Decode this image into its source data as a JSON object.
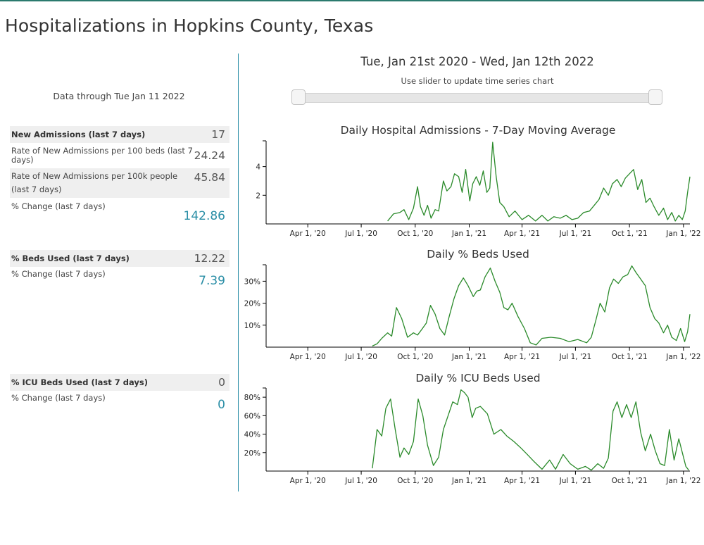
{
  "page": {
    "title": "Hospitalizations in Hopkins County, Texas"
  },
  "summary": {
    "data_through": "Data through Tue Jan 11 2022",
    "stats": [
      {
        "label": "New Admissions (last 7 days)",
        "value": "17",
        "bold": true,
        "shaded": true,
        "teal": false
      },
      {
        "label": "Rate of New Admissions per 100 beds (last 7 days)",
        "value": "24.24",
        "bold": false,
        "shaded": false,
        "teal": false
      },
      {
        "label": "Rate of New Admissions per 100k people (last 7 days)",
        "value": "45.84",
        "bold": false,
        "shaded": true,
        "teal": false
      },
      {
        "label": "% Change (last 7 days)",
        "value": "142.86",
        "bold": false,
        "shaded": false,
        "teal": true
      },
      {
        "label": "% Beds Used (last 7 days)",
        "value": "12.22",
        "bold": true,
        "shaded": true,
        "teal": false
      },
      {
        "label": "% Change (last 7 days)",
        "value": "7.39",
        "bold": false,
        "shaded": false,
        "teal": true
      },
      {
        "label": "% ICU Beds Used (last 7 days)",
        "value": "0",
        "bold": true,
        "shaded": true,
        "teal": false
      },
      {
        "label": "% Change (last 7 days)",
        "value": "0",
        "bold": false,
        "shaded": false,
        "teal": true
      }
    ]
  },
  "time_range": {
    "title": "Tue, Jan 21st 2020 - Wed, Jan 12th 2022",
    "hint": "Use slider to update time series chart"
  },
  "colors": {
    "line": "#2a8a2a",
    "accent": "#2a8ea6",
    "shade": "#efefef"
  },
  "chart_data": [
    {
      "type": "line",
      "title": "Daily Hospital Admissions - 7-Day Moving Average",
      "xlabel": "",
      "ylabel": "",
      "xlim": [
        "2020-01-21",
        "2022-01-12"
      ],
      "ylim": [
        0,
        5.8
      ],
      "y_ticks": [
        2,
        4
      ],
      "y_tick_labels": [
        "2",
        "4"
      ],
      "x_ticks": [
        "2020-04-01",
        "2020-07-01",
        "2020-10-01",
        "2021-01-01",
        "2021-04-01",
        "2021-07-01",
        "2021-10-01",
        "2022-01-01"
      ],
      "x_tick_labels": [
        "Apr 1, '20",
        "Jul 1, '20",
        "Oct 1, '20",
        "Jan 1, '21",
        "Apr 1, '21",
        "Jul 1, '21",
        "Oct 1, '21",
        "Jan 1, '22"
      ],
      "grid": false,
      "series": [
        {
          "x": [
            "2020-08-15",
            "2020-08-25",
            "2020-09-05",
            "2020-09-12",
            "2020-09-20",
            "2020-09-28",
            "2020-10-05",
            "2020-10-10",
            "2020-10-16",
            "2020-10-22",
            "2020-10-28",
            "2020-11-04",
            "2020-11-10",
            "2020-11-18",
            "2020-11-24",
            "2020-12-01",
            "2020-12-07",
            "2020-12-14",
            "2020-12-20",
            "2020-12-26",
            "2021-01-02",
            "2021-01-07",
            "2021-01-13",
            "2021-01-19",
            "2021-01-25",
            "2021-01-31",
            "2021-02-05",
            "2021-02-10",
            "2021-02-16",
            "2021-02-22",
            "2021-03-01",
            "2021-03-10",
            "2021-03-20",
            "2021-04-01",
            "2021-04-12",
            "2021-04-24",
            "2021-05-05",
            "2021-05-15",
            "2021-05-25",
            "2021-06-05",
            "2021-06-15",
            "2021-06-25",
            "2021-07-05",
            "2021-07-15",
            "2021-07-25",
            "2021-08-02",
            "2021-08-10",
            "2021-08-18",
            "2021-08-26",
            "2021-09-02",
            "2021-09-10",
            "2021-09-17",
            "2021-09-24",
            "2021-10-01",
            "2021-10-08",
            "2021-10-15",
            "2021-10-22",
            "2021-10-29",
            "2021-11-05",
            "2021-11-12",
            "2021-11-20",
            "2021-11-28",
            "2021-12-05",
            "2021-12-12",
            "2021-12-18",
            "2021-12-24",
            "2021-12-30",
            "2022-01-04",
            "2022-01-08",
            "2022-01-12"
          ],
          "y": [
            0.2,
            0.7,
            0.8,
            1.0,
            0.3,
            1.1,
            2.6,
            1.2,
            0.6,
            1.3,
            0.4,
            1.0,
            0.9,
            3.0,
            2.3,
            2.6,
            3.5,
            3.3,
            2.2,
            3.8,
            1.6,
            2.8,
            3.3,
            2.7,
            3.7,
            2.2,
            2.5,
            5.7,
            3.3,
            1.5,
            1.2,
            0.5,
            0.9,
            0.3,
            0.6,
            0.2,
            0.6,
            0.2,
            0.5,
            0.4,
            0.6,
            0.3,
            0.4,
            0.8,
            0.9,
            1.3,
            1.7,
            2.5,
            2.0,
            2.8,
            3.1,
            2.6,
            3.2,
            3.5,
            3.8,
            2.4,
            3.1,
            1.5,
            1.8,
            1.2,
            0.6,
            1.1,
            0.3,
            0.8,
            0.2,
            0.6,
            0.3,
            0.9,
            2.2,
            3.3
          ]
        }
      ]
    },
    {
      "type": "line",
      "title": "Daily % Beds Used",
      "xlabel": "",
      "ylabel": "",
      "xlim": [
        "2020-01-21",
        "2022-01-12"
      ],
      "ylim": [
        0,
        37.5
      ],
      "y_ticks": [
        10,
        20,
        30
      ],
      "y_tick_labels": [
        "10%",
        "20%",
        "30%"
      ],
      "x_ticks": [
        "2020-04-01",
        "2020-07-01",
        "2020-10-01",
        "2021-01-01",
        "2021-04-01",
        "2021-07-01",
        "2021-10-01",
        "2022-01-01"
      ],
      "x_tick_labels": [
        "Apr 1, '20",
        "Jul 1, '20",
        "Oct 1, '20",
        "Jan 1, '21",
        "Apr 1, '21",
        "Jul 1, '21",
        "Oct 1, '21",
        "Jan 1, '22"
      ],
      "grid": false,
      "series": [
        {
          "x": [
            "2020-07-20",
            "2020-07-28",
            "2020-08-05",
            "2020-08-15",
            "2020-08-22",
            "2020-08-30",
            "2020-09-08",
            "2020-09-18",
            "2020-09-28",
            "2020-10-05",
            "2020-10-12",
            "2020-10-20",
            "2020-10-27",
            "2020-11-04",
            "2020-11-12",
            "2020-11-20",
            "2020-11-28",
            "2020-12-06",
            "2020-12-14",
            "2020-12-22",
            "2020-12-30",
            "2021-01-08",
            "2021-01-14",
            "2021-01-20",
            "2021-01-28",
            "2021-02-06",
            "2021-02-14",
            "2021-02-22",
            "2021-03-01",
            "2021-03-08",
            "2021-03-15",
            "2021-03-25",
            "2021-04-05",
            "2021-04-15",
            "2021-04-25",
            "2021-05-05",
            "2021-05-20",
            "2021-06-05",
            "2021-06-20",
            "2021-07-05",
            "2021-07-20",
            "2021-07-28",
            "2021-08-05",
            "2021-08-12",
            "2021-08-20",
            "2021-08-28",
            "2021-09-04",
            "2021-09-12",
            "2021-09-20",
            "2021-09-28",
            "2021-10-05",
            "2021-10-12",
            "2021-10-20",
            "2021-10-28",
            "2021-11-05",
            "2021-11-13",
            "2021-11-20",
            "2021-11-28",
            "2021-12-05",
            "2021-12-12",
            "2021-12-20",
            "2021-12-27",
            "2022-01-03",
            "2022-01-08",
            "2022-01-12"
          ],
          "y": [
            0.5,
            1.5,
            4.0,
            6.5,
            5.0,
            18.0,
            13.0,
            4.5,
            6.5,
            5.5,
            8.0,
            11.0,
            19.0,
            15.0,
            8.5,
            5.5,
            14.0,
            22.0,
            28.0,
            31.5,
            28.0,
            23.0,
            25.5,
            26.0,
            32.0,
            36.0,
            30.0,
            25.0,
            18.0,
            17.0,
            20.0,
            14.0,
            8.5,
            2.0,
            1.0,
            4.0,
            4.5,
            4.0,
            2.5,
            3.5,
            2.0,
            4.5,
            12.5,
            20.0,
            16.0,
            27.0,
            31.0,
            29.0,
            32.0,
            33.0,
            37.0,
            34.0,
            31.0,
            28.0,
            18.0,
            13.0,
            11.0,
            6.5,
            10.0,
            4.5,
            3.0,
            8.5,
            2.5,
            7.0,
            15.0
          ]
        }
      ]
    },
    {
      "type": "line",
      "title": "Daily % ICU Beds Used",
      "xlabel": "",
      "ylabel": "",
      "xlim": [
        "2020-01-21",
        "2022-01-12"
      ],
      "ylim": [
        0,
        90
      ],
      "y_ticks": [
        20,
        40,
        60,
        80
      ],
      "y_tick_labels": [
        "20%",
        "40%",
        "60%",
        "80%"
      ],
      "x_ticks": [
        "2020-04-01",
        "2020-07-01",
        "2020-10-01",
        "2021-01-01",
        "2021-04-01",
        "2021-07-01",
        "2021-10-01",
        "2022-01-01"
      ],
      "x_tick_labels": [
        "Apr 1, '20",
        "Jul 1, '20",
        "Oct 1, '20",
        "Jan 1, '21",
        "Apr 1, '21",
        "Jul 1, '21",
        "Oct 1, '21",
        "Jan 1, '22"
      ],
      "grid": false,
      "series": [
        {
          "x": [
            "2020-07-20",
            "2020-07-28",
            "2020-08-05",
            "2020-08-12",
            "2020-08-20",
            "2020-08-28",
            "2020-09-05",
            "2020-09-12",
            "2020-09-20",
            "2020-09-28",
            "2020-10-06",
            "2020-10-14",
            "2020-10-22",
            "2020-11-01",
            "2020-11-10",
            "2020-11-18",
            "2020-11-26",
            "2020-12-04",
            "2020-12-12",
            "2020-12-18",
            "2020-12-24",
            "2020-12-30",
            "2021-01-06",
            "2021-01-12",
            "2021-01-20",
            "2021-02-01",
            "2021-02-12",
            "2021-02-24",
            "2021-03-06",
            "2021-03-18",
            "2021-03-30",
            "2021-04-10",
            "2021-04-22",
            "2021-05-05",
            "2021-05-18",
            "2021-05-28",
            "2021-06-10",
            "2021-06-22",
            "2021-07-05",
            "2021-07-18",
            "2021-07-28",
            "2021-08-08",
            "2021-08-18",
            "2021-08-26",
            "2021-09-03",
            "2021-09-10",
            "2021-09-18",
            "2021-09-26",
            "2021-10-04",
            "2021-10-12",
            "2021-10-20",
            "2021-10-28",
            "2021-11-06",
            "2021-11-14",
            "2021-11-22",
            "2021-11-30",
            "2021-12-08",
            "2021-12-16",
            "2021-12-24",
            "2021-12-30",
            "2022-01-05",
            "2022-01-10"
          ],
          "y": [
            3,
            45,
            38,
            68,
            78,
            45,
            15,
            25,
            18,
            32,
            78,
            60,
            28,
            6,
            15,
            45,
            60,
            75,
            72,
            88,
            85,
            80,
            58,
            68,
            70,
            62,
            40,
            45,
            38,
            32,
            25,
            18,
            10,
            2,
            12,
            2,
            18,
            8,
            2,
            5,
            1,
            8,
            3,
            14,
            65,
            75,
            58,
            72,
            58,
            75,
            42,
            22,
            40,
            22,
            8,
            6,
            45,
            12,
            35,
            20,
            5,
            1
          ]
        }
      ]
    }
  ]
}
